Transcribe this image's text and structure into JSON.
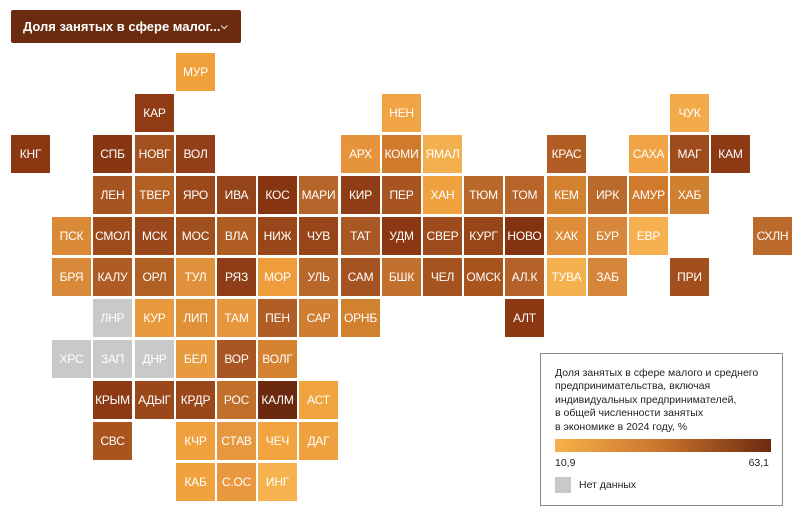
{
  "dropdown": {
    "label": "Доля занятых в сфере малог...",
    "icon": "chevron-down-icon"
  },
  "legend": {
    "title": "Доля занятых в сфере малого и среднего\nпредпринимательства, включая\nиндивидуальных предпринимателей,\nв общей численности занятых\nв экономике в 2024 году, %",
    "min_label": "10,9",
    "max_label": "63,1",
    "min_value": 10.9,
    "max_value": 63.1,
    "gradient_start_color": "#f6b24a",
    "gradient_end_color": "#6b2a0f",
    "no_data_label": "Нет данных",
    "no_data_color": "#c9c9c9"
  },
  "regions": [
    {
      "label": "МУР",
      "col": 4,
      "row": 0,
      "color": "#f1a13c"
    },
    {
      "label": "КАР",
      "col": 3,
      "row": 1,
      "color": "#8f3c14"
    },
    {
      "label": "НЕН",
      "col": 9,
      "row": 1,
      "color": "#f1a444"
    },
    {
      "label": "ЧУК",
      "col": 16,
      "row": 1,
      "color": "#f3ab49"
    },
    {
      "label": "КНГ",
      "col": 0,
      "row": 2,
      "color": "#8a3712"
    },
    {
      "label": "СПБ",
      "col": 2,
      "row": 2,
      "color": "#873611"
    },
    {
      "label": "НОВГ",
      "col": 3,
      "row": 2,
      "color": "#a3501f"
    },
    {
      "label": "ВОЛ",
      "col": 4,
      "row": 2,
      "color": "#93401a"
    },
    {
      "label": "АРХ",
      "col": 8,
      "row": 2,
      "color": "#e5933c"
    },
    {
      "label": "КОМИ",
      "col": 9,
      "row": 2,
      "color": "#d07a2c"
    },
    {
      "label": "ЯМАЛ",
      "col": 10,
      "row": 2,
      "color": "#f3b04e"
    },
    {
      "label": "КРАС",
      "col": 13,
      "row": 2,
      "color": "#b05c22"
    },
    {
      "label": "САХА",
      "col": 15,
      "row": 2,
      "color": "#f0a445"
    },
    {
      "label": "МАГ",
      "col": 16,
      "row": 2,
      "color": "#9e4c1c"
    },
    {
      "label": "КАМ",
      "col": 17,
      "row": 2,
      "color": "#8c3914"
    },
    {
      "label": "ЛЕН",
      "col": 2,
      "row": 3,
      "color": "#a65420"
    },
    {
      "label": "ТВЕР",
      "col": 3,
      "row": 3,
      "color": "#b36025"
    },
    {
      "label": "ЯРО",
      "col": 4,
      "row": 3,
      "color": "#9b491b"
    },
    {
      "label": "ИВА",
      "col": 5,
      "row": 3,
      "color": "#954419"
    },
    {
      "label": "КОС",
      "col": 6,
      "row": 3,
      "color": "#863510"
    },
    {
      "label": "МАРИ",
      "col": 7,
      "row": 3,
      "color": "#b6652a"
    },
    {
      "label": "КИР",
      "col": 8,
      "row": 3,
      "color": "#8f3d16"
    },
    {
      "label": "ПЕР",
      "col": 9,
      "row": 3,
      "color": "#a75421"
    },
    {
      "label": "ХАН",
      "col": 10,
      "row": 3,
      "color": "#f0a13f"
    },
    {
      "label": "ТЮМ",
      "col": 11,
      "row": 3,
      "color": "#b8682a"
    },
    {
      "label": "ТОМ",
      "col": 12,
      "row": 3,
      "color": "#b7652a"
    },
    {
      "label": "КЕМ",
      "col": 13,
      "row": 3,
      "color": "#d2822f"
    },
    {
      "label": "ИРК",
      "col": 14,
      "row": 3,
      "color": "#b96a2c"
    },
    {
      "label": "АМУР",
      "col": 15,
      "row": 3,
      "color": "#d07a2d"
    },
    {
      "label": "ХАБ",
      "col": 16,
      "row": 3,
      "color": "#d0812f"
    },
    {
      "label": "ПСК",
      "col": 1,
      "row": 4,
      "color": "#da8a36"
    },
    {
      "label": "СМОЛ",
      "col": 2,
      "row": 4,
      "color": "#9e4b1c"
    },
    {
      "label": "МСК",
      "col": 3,
      "row": 4,
      "color": "#9a481b"
    },
    {
      "label": "МОС",
      "col": 4,
      "row": 4,
      "color": "#a04f1e"
    },
    {
      "label": "ВЛА",
      "col": 5,
      "row": 4,
      "color": "#b05d23"
    },
    {
      "label": "НИЖ",
      "col": 6,
      "row": 4,
      "color": "#98461a"
    },
    {
      "label": "ЧУВ",
      "col": 7,
      "row": 4,
      "color": "#984519"
    },
    {
      "label": "ТАТ",
      "col": 8,
      "row": 4,
      "color": "#a85822"
    },
    {
      "label": "УДМ",
      "col": 9,
      "row": 4,
      "color": "#8a3712"
    },
    {
      "label": "СВЕР",
      "col": 10,
      "row": 4,
      "color": "#9d4b1c"
    },
    {
      "label": "КУРГ",
      "col": 11,
      "row": 4,
      "color": "#984619"
    },
    {
      "label": "НОВО",
      "col": 12,
      "row": 4,
      "color": "#843310"
    },
    {
      "label": "ХАК",
      "col": 13,
      "row": 4,
      "color": "#de8e39"
    },
    {
      "label": "БУР",
      "col": 14,
      "row": 4,
      "color": "#d8873a"
    },
    {
      "label": "ЕВР",
      "col": 15,
      "row": 4,
      "color": "#f6b050"
    },
    {
      "label": "СХЛН",
      "col": 18,
      "row": 4,
      "color": "#bb6a2c"
    },
    {
      "label": "БРЯ",
      "col": 1,
      "row": 5,
      "color": "#d8893a"
    },
    {
      "label": "КАЛУ",
      "col": 2,
      "row": 5,
      "color": "#ae5c24"
    },
    {
      "label": "ОРЛ",
      "col": 3,
      "row": 5,
      "color": "#b16024"
    },
    {
      "label": "ТУЛ",
      "col": 4,
      "row": 5,
      "color": "#e1913b"
    },
    {
      "label": "РЯЗ",
      "col": 5,
      "row": 5,
      "color": "#8f3d16"
    },
    {
      "label": "МОР",
      "col": 6,
      "row": 5,
      "color": "#ef9c3c"
    },
    {
      "label": "УЛЬ",
      "col": 7,
      "row": 5,
      "color": "#b8672a"
    },
    {
      "label": "САМ",
      "col": 8,
      "row": 5,
      "color": "#a55320"
    },
    {
      "label": "БШК",
      "col": 9,
      "row": 5,
      "color": "#c1702e"
    },
    {
      "label": "ЧЕЛ",
      "col": 10,
      "row": 5,
      "color": "#a6541f"
    },
    {
      "label": "ОМСК",
      "col": 11,
      "row": 5,
      "color": "#a7541f"
    },
    {
      "label": "АЛ.К",
      "col": 12,
      "row": 5,
      "color": "#b4622a"
    },
    {
      "label": "ТУВА",
      "col": 13,
      "row": 5,
      "color": "#f4b24e"
    },
    {
      "label": "ЗАБ",
      "col": 14,
      "row": 5,
      "color": "#d6853a"
    },
    {
      "label": "ПРИ",
      "col": 16,
      "row": 5,
      "color": "#a34f1d"
    },
    {
      "label": "ЛНР",
      "col": 2,
      "row": 6,
      "color": "#c9c9c9"
    },
    {
      "label": "КУР",
      "col": 3,
      "row": 6,
      "color": "#ea9a3e"
    },
    {
      "label": "ЛИП",
      "col": 4,
      "row": 6,
      "color": "#e09039"
    },
    {
      "label": "ТАМ",
      "col": 5,
      "row": 6,
      "color": "#e8963d"
    },
    {
      "label": "ПЕН",
      "col": 6,
      "row": 6,
      "color": "#b05e25"
    },
    {
      "label": "САР",
      "col": 7,
      "row": 6,
      "color": "#ce7d31"
    },
    {
      "label": "ОРНБ",
      "col": 8,
      "row": 6,
      "color": "#d2812f"
    },
    {
      "label": "АЛТ",
      "col": 12,
      "row": 6,
      "color": "#8b3813"
    },
    {
      "label": "ХРС",
      "col": 1,
      "row": 7,
      "color": "#c9c9c9"
    },
    {
      "label": "ЗАП",
      "col": 2,
      "row": 7,
      "color": "#c9c9c9"
    },
    {
      "label": "ДНР",
      "col": 3,
      "row": 7,
      "color": "#c9c9c9"
    },
    {
      "label": "БЕЛ",
      "col": 4,
      "row": 7,
      "color": "#e89a3f"
    },
    {
      "label": "ВОР",
      "col": 5,
      "row": 7,
      "color": "#a85623"
    },
    {
      "label": "ВОЛГ",
      "col": 6,
      "row": 7,
      "color": "#d48230"
    },
    {
      "label": "КРЫМ",
      "col": 2,
      "row": 8,
      "color": "#8d3a14"
    },
    {
      "label": "АДЫГ",
      "col": 3,
      "row": 8,
      "color": "#9a481b"
    },
    {
      "label": "КРДР",
      "col": 4,
      "row": 8,
      "color": "#9a4719"
    },
    {
      "label": "РОС",
      "col": 5,
      "row": 8,
      "color": "#c36f2c"
    },
    {
      "label": "КАЛМ",
      "col": 6,
      "row": 8,
      "color": "#6b2a0f"
    },
    {
      "label": "АСТ",
      "col": 7,
      "row": 8,
      "color": "#f0a43f"
    },
    {
      "label": "СВС",
      "col": 2,
      "row": 9,
      "color": "#a8541f"
    },
    {
      "label": "КЧР",
      "col": 4,
      "row": 9,
      "color": "#f0a13e"
    },
    {
      "label": "СТАВ",
      "col": 5,
      "row": 9,
      "color": "#e69840"
    },
    {
      "label": "ЧЕЧ",
      "col": 6,
      "row": 9,
      "color": "#f2a441"
    },
    {
      "label": "ДАГ",
      "col": 7,
      "row": 9,
      "color": "#f0a13f"
    },
    {
      "label": "КАБ",
      "col": 4,
      "row": 10,
      "color": "#f1a23f"
    },
    {
      "label": "С.ОС",
      "col": 5,
      "row": 10,
      "color": "#e9983f"
    },
    {
      "label": "ИНГ",
      "col": 6,
      "row": 10,
      "color": "#f5b24e"
    }
  ]
}
